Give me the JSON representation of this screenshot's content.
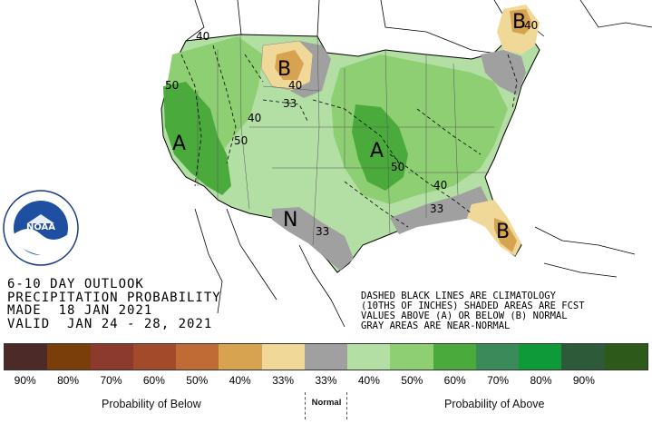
{
  "title": {
    "line1": "6-10 DAY OUTLOOK",
    "line2": "PRECIPITATION PROBABILITY",
    "line3": "MADE  18 JAN 2021",
    "line4": "VALID  JAN 24 - 28, 2021"
  },
  "legend_note": {
    "line1": "DASHED BLACK LINES ARE CLIMATOLOGY",
    "line2": "(10THS OF INCHES) SHADED AREAS ARE FCST",
    "line3": "VALUES ABOVE (A) OR BELOW (B) NORMAL",
    "line4": "GRAY AREAS ARE NEAR-NORMAL"
  },
  "logo_text": "NOAA",
  "map_labels": {
    "region_A_west": "A",
    "region_A_central": "A",
    "region_B_north": "B",
    "region_B_northeast": "B",
    "region_B_florida": "B",
    "region_N_texas": "N",
    "c40_nw": "40",
    "c50_pac": "50",
    "c40_mt": "40",
    "c50_ut": "50",
    "c40_nd": "40",
    "c33_nd": "33",
    "c50_mo": "50",
    "c40_tn": "40",
    "c33_ga": "33",
    "c33_tx": "33",
    "c40_me": "40"
  },
  "color_bar": {
    "bins": [
      {
        "color": "#4b2a27",
        "label": "90%"
      },
      {
        "color": "#7a3e0a",
        "label": "80%"
      },
      {
        "color": "#8c3a2d",
        "label": "70%"
      },
      {
        "color": "#a24a2a",
        "label": "60%"
      },
      {
        "color": "#c06a35",
        "label": "50%"
      },
      {
        "color": "#d8a350",
        "label": "40%"
      },
      {
        "color": "#f0d898",
        "label": "33%"
      },
      {
        "color": "#a0a0a0",
        "label": "33%"
      },
      {
        "color": "#b3dfa5",
        "label": "40%"
      },
      {
        "color": "#8fcf74",
        "label": "50%"
      },
      {
        "color": "#4aab3c",
        "label": "60%"
      },
      {
        "color": "#3a8a5a",
        "label": "70%"
      },
      {
        "color": "#0f9a3a",
        "label": "80%"
      },
      {
        "color": "#2d5b3a",
        "label": "90%"
      },
      {
        "color": "#2d5a1a",
        "label": ""
      }
    ],
    "below_label": "Probability of Below",
    "normal_label": "Normal",
    "above_label": "Probability of Above"
  },
  "colors": {
    "below_33": "#f0d898",
    "below_40": "#d8a350",
    "normal": "#a0a0a0",
    "above_33": "#b3dfa5",
    "above_40": "#8fcf74",
    "above_50": "#4aab3c"
  }
}
